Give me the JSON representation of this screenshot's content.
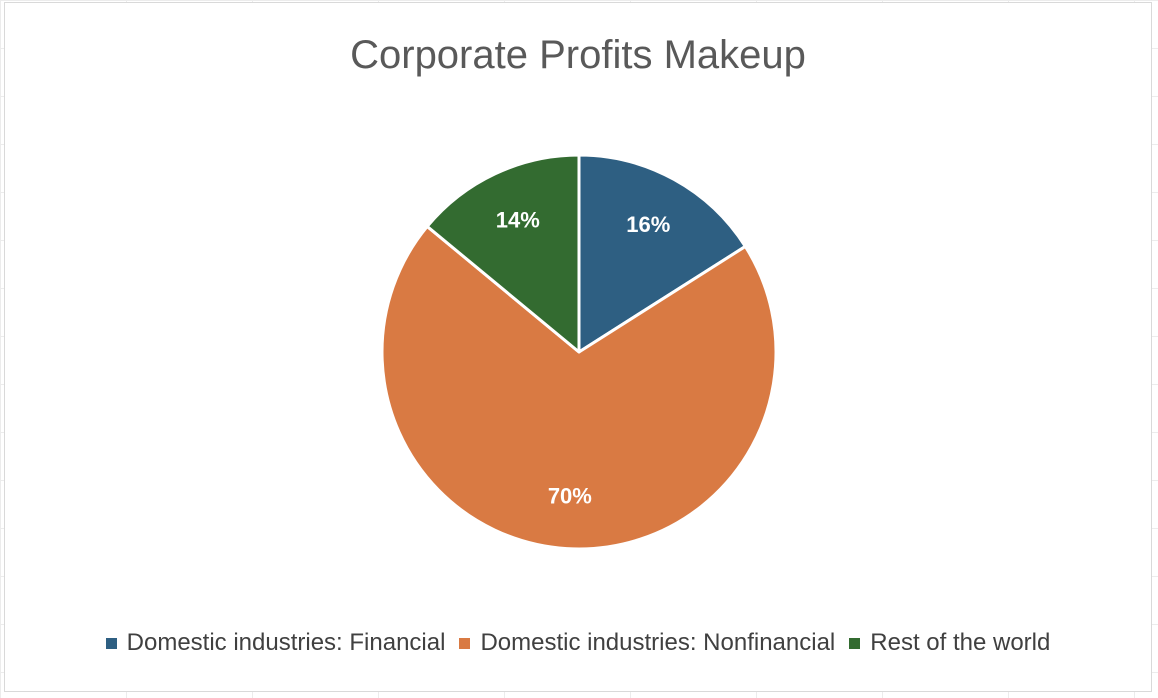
{
  "chart_data": {
    "type": "pie",
    "title": "Corporate Profits Makeup",
    "categories": [
      "Domestic industries: Financial",
      "Domestic industries: Nonfinancial",
      "Rest of the world"
    ],
    "values": [
      16,
      70,
      14
    ],
    "labels": [
      "16%",
      "70%",
      "14%"
    ],
    "colors": [
      "#2e5f82",
      "#d97a43",
      "#336b30"
    ],
    "legend_position": "bottom"
  }
}
